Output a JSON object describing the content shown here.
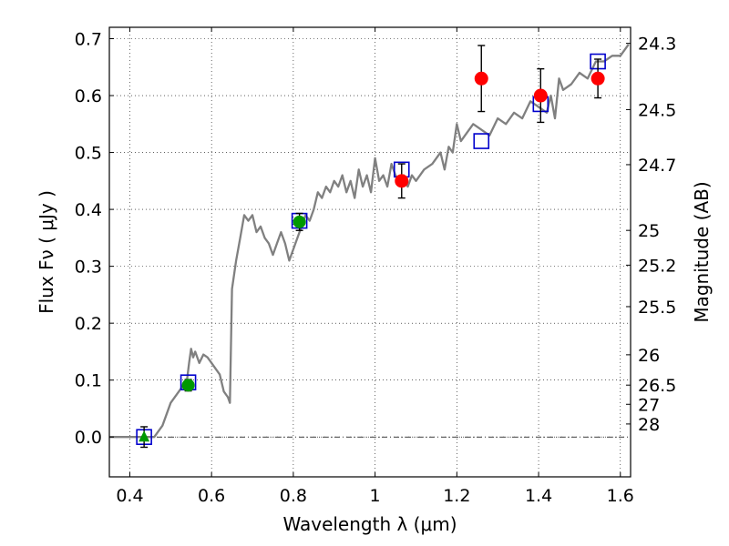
{
  "chart_data": {
    "type": "scatter",
    "xlabel": "Wavelength  λ (μm)",
    "ylabel": "Flux  Fν  ( μJy )",
    "ylabel_right": "Magnitude (AB)",
    "xlim": [
      0.35,
      1.625
    ],
    "ylim": [
      -0.07,
      0.72
    ],
    "xticks": [
      0.4,
      0.6,
      0.8,
      1.0,
      1.2,
      1.4,
      1.6
    ],
    "xtick_labels": [
      "0.4",
      "0.6",
      "0.8",
      "1",
      "1.2",
      "1.4",
      "1.6"
    ],
    "yticks": [
      0.0,
      0.1,
      0.2,
      0.3,
      0.4,
      0.5,
      0.6,
      0.7
    ],
    "ytick_labels": [
      "0.0",
      "0.1",
      "0.2",
      "0.3",
      "0.4",
      "0.5",
      "0.6",
      "0.7"
    ],
    "right_ticks": [
      {
        "label": "24.3",
        "flux": 0.6918
      },
      {
        "label": "24.5",
        "flux": 0.5754
      },
      {
        "label": "24.7",
        "flux": 0.4786
      },
      {
        "label": "25",
        "flux": 0.3631
      },
      {
        "label": "25.2",
        "flux": 0.302
      },
      {
        "label": "25.5",
        "flux": 0.2291
      },
      {
        "label": "26",
        "flux": 0.1445
      },
      {
        "label": "26.5",
        "flux": 0.0912
      },
      {
        "label": "27",
        "flux": 0.0575
      },
      {
        "label": "28",
        "flux": 0.0229
      }
    ],
    "grid": true,
    "model_spectrum": {
      "color": "#808080",
      "x": [
        0.35,
        0.45,
        0.46,
        0.48,
        0.5,
        0.52,
        0.54,
        0.545,
        0.55,
        0.555,
        0.56,
        0.57,
        0.58,
        0.59,
        0.6,
        0.61,
        0.62,
        0.63,
        0.64,
        0.645,
        0.65,
        0.66,
        0.67,
        0.68,
        0.69,
        0.7,
        0.71,
        0.72,
        0.73,
        0.74,
        0.75,
        0.76,
        0.77,
        0.78,
        0.79,
        0.8,
        0.81,
        0.82,
        0.83,
        0.84,
        0.85,
        0.86,
        0.87,
        0.88,
        0.89,
        0.9,
        0.91,
        0.92,
        0.93,
        0.94,
        0.95,
        0.96,
        0.97,
        0.98,
        0.99,
        1.0,
        1.01,
        1.02,
        1.03,
        1.04,
        1.05,
        1.06,
        1.07,
        1.08,
        1.09,
        1.1,
        1.12,
        1.14,
        1.16,
        1.17,
        1.18,
        1.19,
        1.2,
        1.21,
        1.22,
        1.24,
        1.26,
        1.28,
        1.3,
        1.32,
        1.34,
        1.36,
        1.38,
        1.4,
        1.42,
        1.43,
        1.44,
        1.45,
        1.46,
        1.48,
        1.5,
        1.52,
        1.54,
        1.56,
        1.58,
        1.6,
        1.62
      ],
      "y": [
        0.0,
        0.0,
        0.0,
        0.02,
        0.06,
        0.08,
        0.1,
        0.13,
        0.155,
        0.14,
        0.15,
        0.13,
        0.145,
        0.14,
        0.13,
        0.12,
        0.11,
        0.08,
        0.07,
        0.06,
        0.26,
        0.31,
        0.35,
        0.39,
        0.38,
        0.39,
        0.36,
        0.37,
        0.35,
        0.34,
        0.32,
        0.34,
        0.36,
        0.34,
        0.31,
        0.33,
        0.35,
        0.37,
        0.39,
        0.38,
        0.4,
        0.43,
        0.42,
        0.44,
        0.43,
        0.45,
        0.44,
        0.46,
        0.43,
        0.45,
        0.42,
        0.47,
        0.44,
        0.46,
        0.43,
        0.49,
        0.45,
        0.46,
        0.44,
        0.48,
        0.46,
        0.45,
        0.46,
        0.44,
        0.46,
        0.45,
        0.47,
        0.48,
        0.5,
        0.47,
        0.51,
        0.5,
        0.55,
        0.52,
        0.53,
        0.55,
        0.54,
        0.53,
        0.56,
        0.55,
        0.57,
        0.56,
        0.59,
        0.58,
        0.57,
        0.6,
        0.56,
        0.63,
        0.61,
        0.62,
        0.64,
        0.63,
        0.66,
        0.66,
        0.67,
        0.67,
        0.69
      ]
    },
    "model_fluxes": {
      "marker": "square",
      "color": "#0000cc",
      "points": [
        {
          "x": 0.435,
          "y": 0.0
        },
        {
          "x": 0.543,
          "y": 0.096
        },
        {
          "x": 0.815,
          "y": 0.38
        },
        {
          "x": 1.065,
          "y": 0.47
        },
        {
          "x": 1.26,
          "y": 0.52
        },
        {
          "x": 1.405,
          "y": 0.585
        },
        {
          "x": 1.545,
          "y": 0.66
        }
      ]
    },
    "observed_optical": {
      "marker": "circle",
      "color": "#009900",
      "points": [
        {
          "x": 0.543,
          "y": 0.091,
          "err": 0.01
        },
        {
          "x": 0.815,
          "y": 0.378,
          "err": 0.015
        }
      ]
    },
    "observed_upper_limit": {
      "marker": "triangle",
      "color": "#009900",
      "points": [
        {
          "x": 0.435,
          "y": 0.0,
          "err": 0.018
        }
      ]
    },
    "observed_nir": {
      "marker": "circle",
      "color": "#ff0000",
      "points": [
        {
          "x": 1.065,
          "y": 0.45,
          "err": 0.03
        },
        {
          "x": 1.26,
          "y": 0.63,
          "err": 0.058
        },
        {
          "x": 1.405,
          "y": 0.6,
          "err": 0.047
        },
        {
          "x": 1.545,
          "y": 0.63,
          "err": 0.034
        }
      ]
    }
  }
}
